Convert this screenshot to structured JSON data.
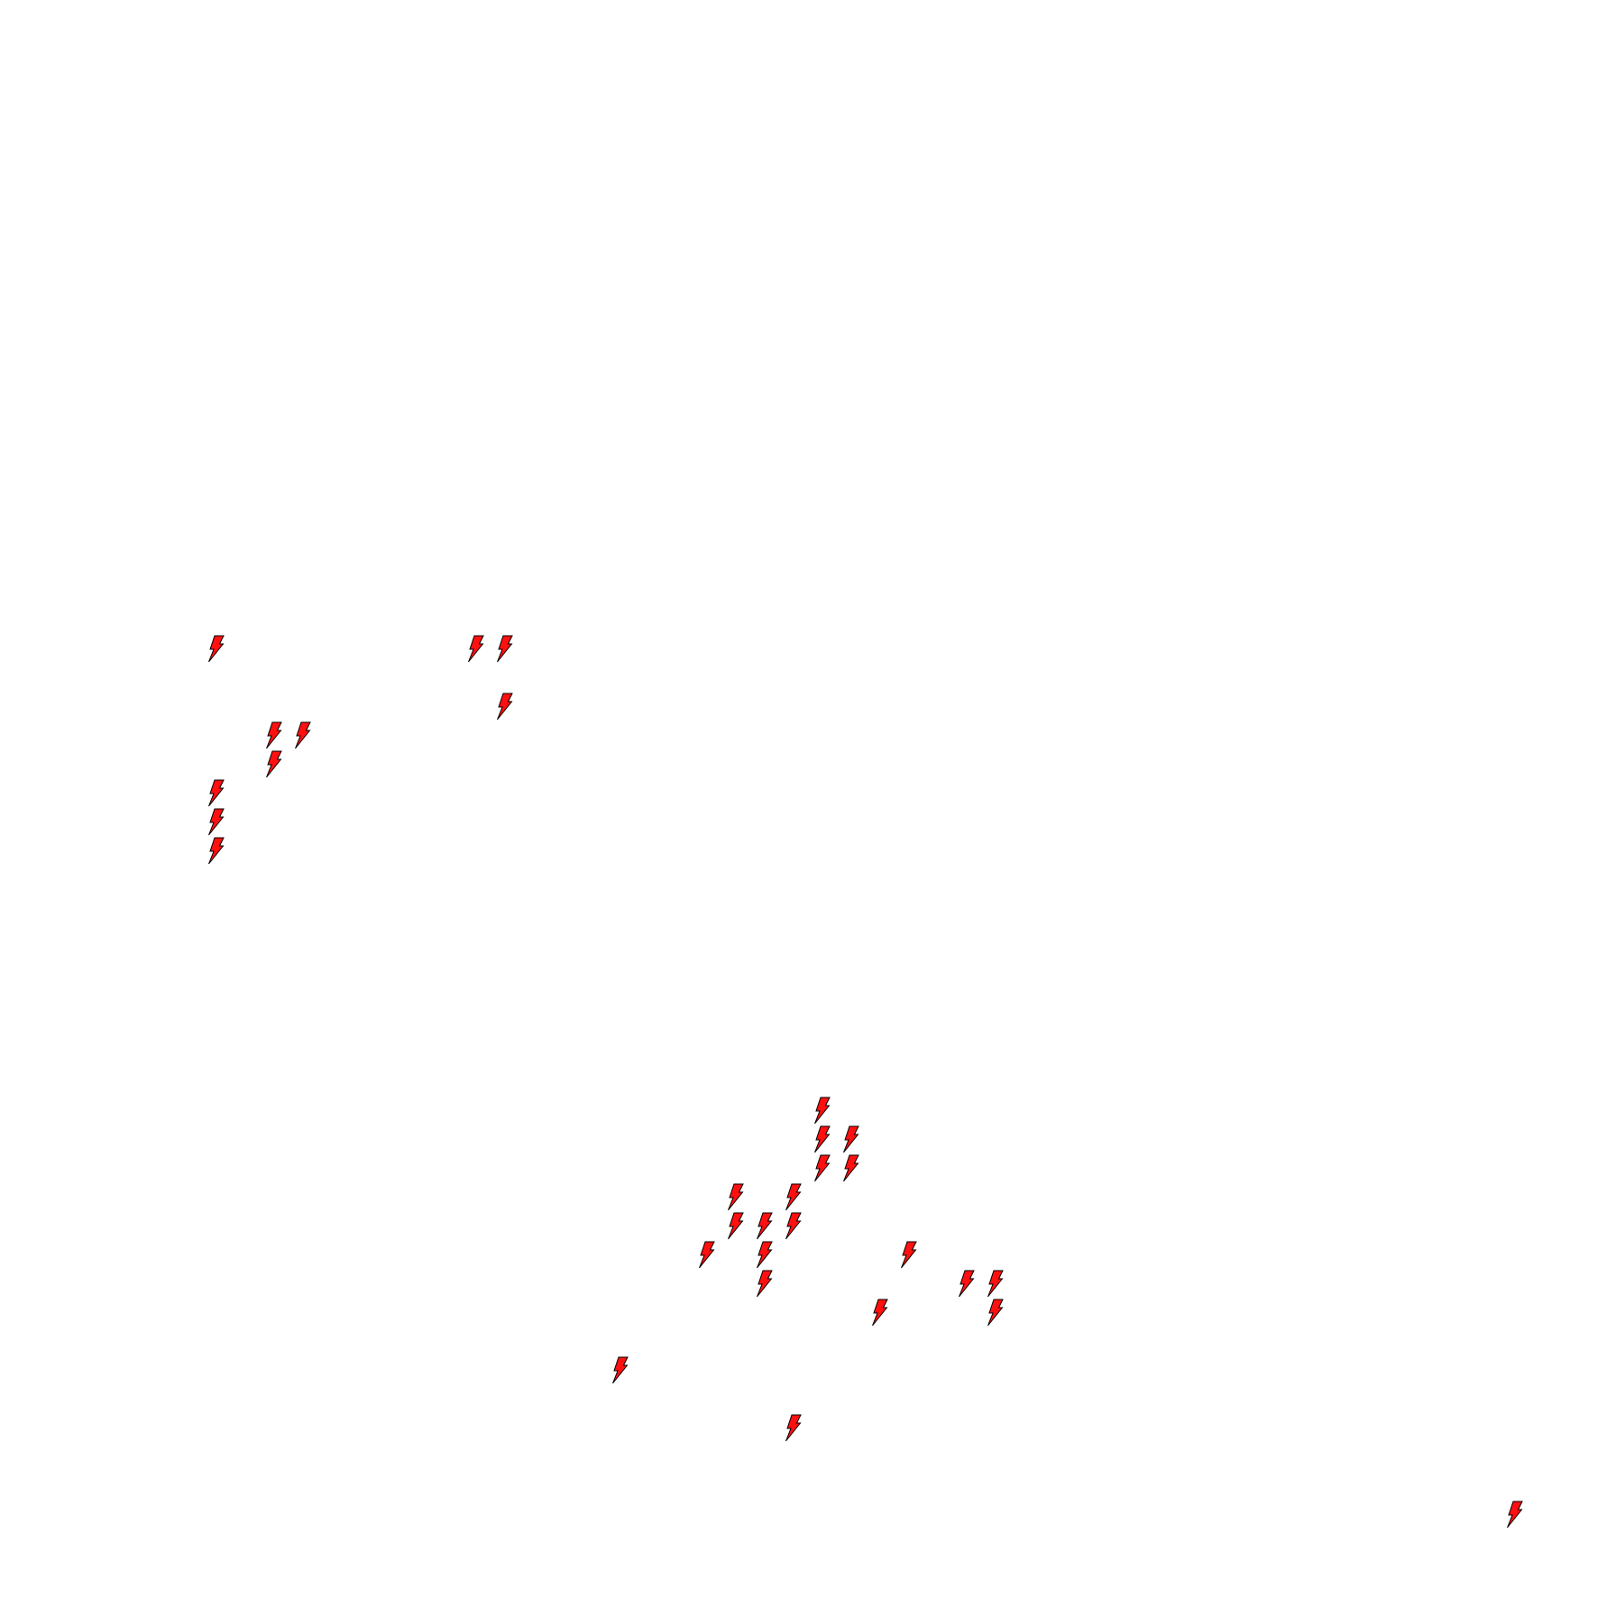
{
  "map": {
    "background": "#ffffff",
    "marker": {
      "icon": "lightning-bolt-icon",
      "fill": "#ff1010",
      "stroke": "#000000"
    }
  }
}
